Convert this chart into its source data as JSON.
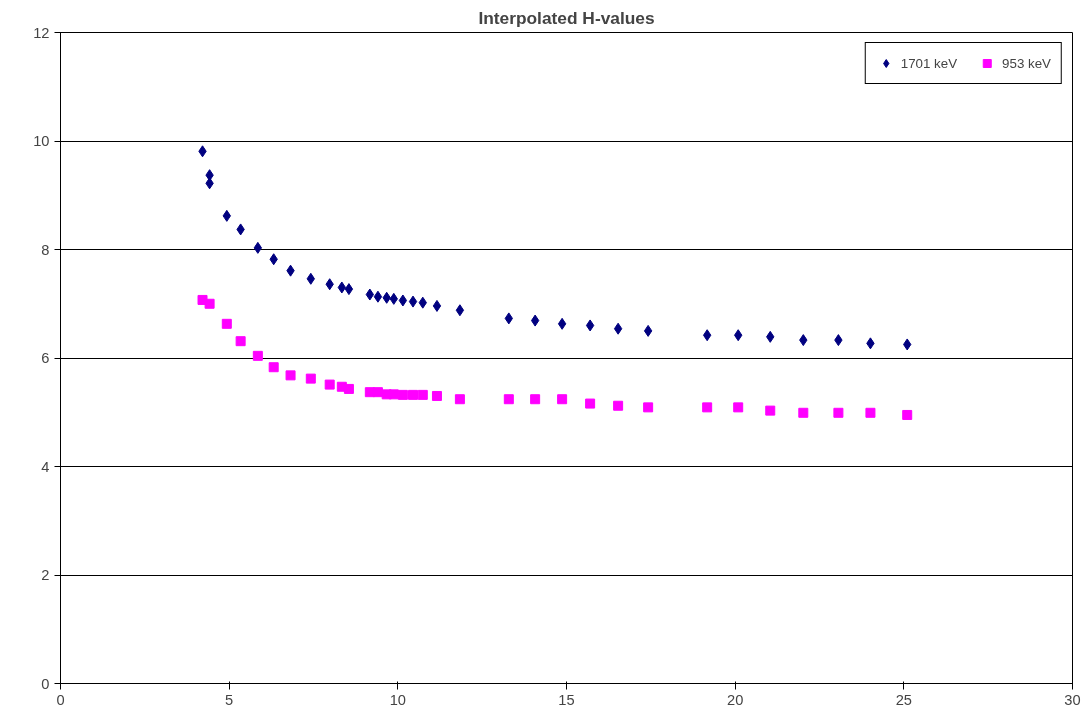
{
  "chart_data": {
    "type": "scatter",
    "title": "Interpolated H-values",
    "xlim": [
      0,
      30
    ],
    "xticks": [
      0,
      5,
      10,
      15,
      20,
      25,
      30
    ],
    "ylim": [
      0,
      12
    ],
    "yticks": [
      0,
      2,
      4,
      6,
      8,
      10,
      12
    ],
    "grid": "y",
    "legend": "top right",
    "series": [
      {
        "name": "1701 keV",
        "color": "#000080",
        "marker": "diamond",
        "x": [
          4.21,
          4.42,
          4.42,
          4.93,
          5.34,
          5.85,
          6.32,
          6.82,
          7.42,
          7.98,
          8.34,
          8.55,
          9.17,
          9.41,
          9.67,
          9.88,
          10.15,
          10.45,
          10.74,
          11.16,
          11.84,
          13.29,
          14.07,
          14.87,
          15.7,
          16.53,
          17.42,
          19.17,
          20.09,
          21.04,
          22.02,
          23.06,
          24.01,
          25.1
        ],
        "values": [
          9.81,
          9.37,
          9.22,
          8.62,
          8.37,
          8.03,
          7.82,
          7.61,
          7.46,
          7.36,
          7.3,
          7.27,
          7.17,
          7.13,
          7.11,
          7.09,
          7.06,
          7.04,
          7.02,
          6.96,
          6.88,
          6.73,
          6.69,
          6.63,
          6.6,
          6.54,
          6.5,
          6.42,
          6.42,
          6.39,
          6.33,
          6.33,
          6.27,
          6.25
        ]
      },
      {
        "name": "953 keV",
        "color": "#ff00ff",
        "marker": "square",
        "x": [
          4.21,
          4.42,
          4.93,
          5.34,
          5.85,
          6.32,
          6.82,
          7.42,
          7.98,
          8.34,
          8.55,
          9.17,
          9.41,
          9.67,
          9.88,
          10.15,
          10.45,
          10.74,
          11.16,
          11.84,
          13.29,
          14.07,
          14.87,
          15.7,
          16.53,
          17.42,
          19.17,
          20.09,
          21.04,
          22.02,
          23.06,
          24.01,
          25.1
        ],
        "values": [
          7.07,
          7.0,
          6.63,
          6.31,
          6.04,
          5.83,
          5.68,
          5.62,
          5.51,
          5.47,
          5.43,
          5.37,
          5.37,
          5.33,
          5.33,
          5.32,
          5.32,
          5.32,
          5.3,
          5.24,
          5.24,
          5.24,
          5.24,
          5.16,
          5.12,
          5.09,
          5.09,
          5.09,
          5.03,
          4.99,
          4.99,
          4.99,
          4.95
        ]
      }
    ]
  }
}
